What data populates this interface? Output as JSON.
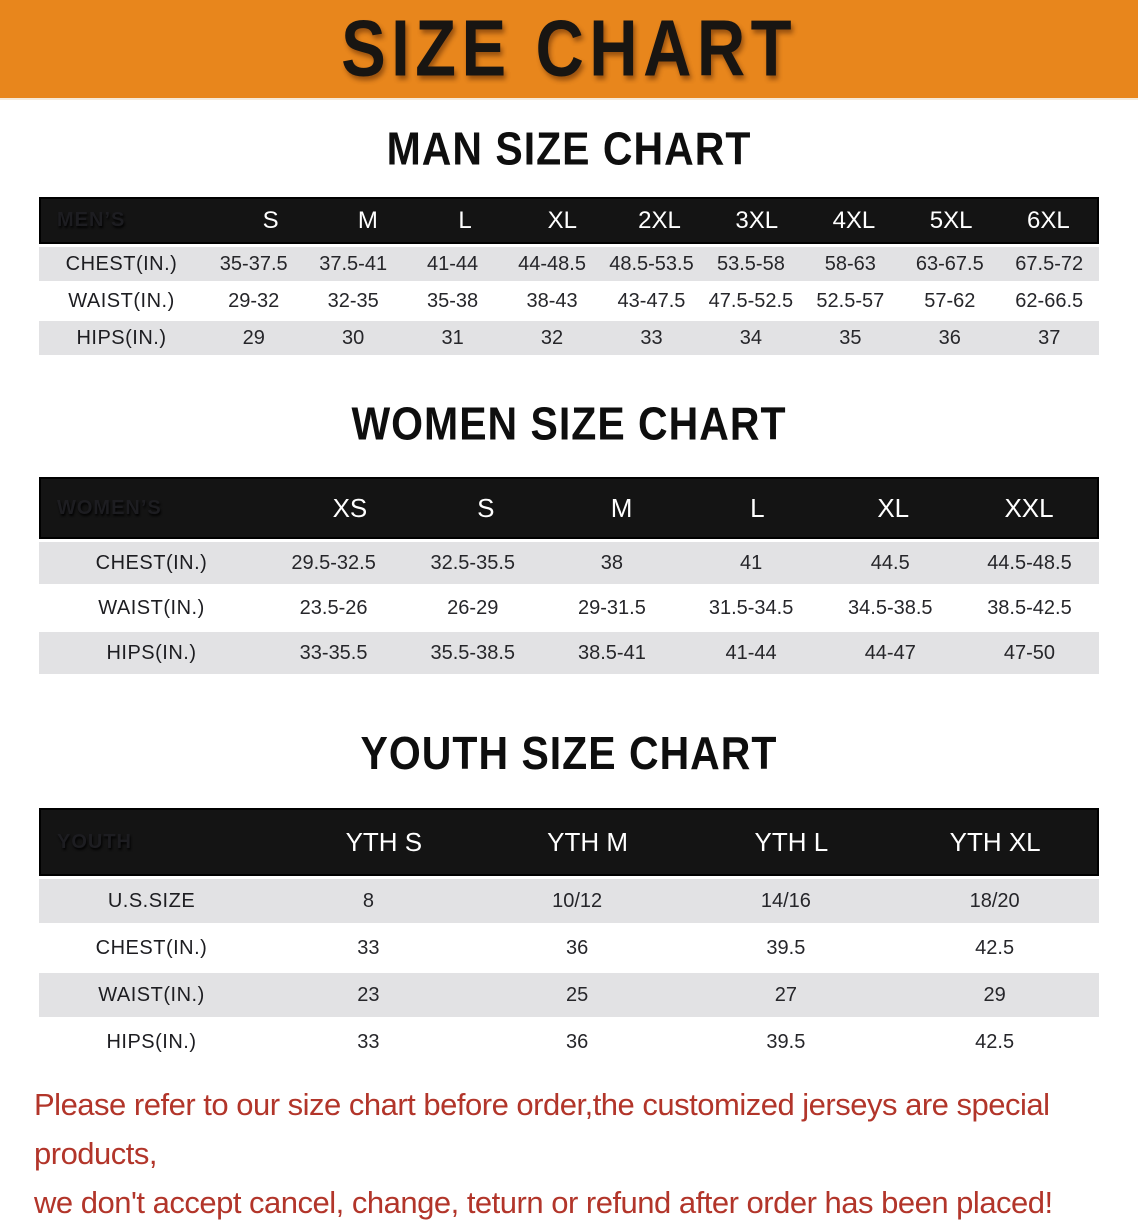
{
  "banner": {
    "title": "SIZE CHART",
    "background_color": "#E8861C",
    "text_color": "#181512"
  },
  "colors": {
    "table_header_bg": "#141414",
    "stripe_row_bg": "#e2e2e4",
    "note_text_color": "#B2352A"
  },
  "sections": [
    {
      "heading": "MAN SIZE CHART",
      "table": {
        "label": "MEN’S",
        "columns": [
          "S",
          "M",
          "L",
          "XL",
          "2XL",
          "3XL",
          "4XL",
          "5XL",
          "6XL"
        ],
        "rows": [
          {
            "label": "CHEST(IN.)",
            "values": [
              "35-37.5",
              "37.5-41",
              "41-44",
              "44-48.5",
              "48.5-53.5",
              "53.5-58",
              "58-63",
              "63-67.5",
              "67.5-72"
            ]
          },
          {
            "label": "WAIST(IN.)",
            "values": [
              "29-32",
              "32-35",
              "35-38",
              "38-43",
              "43-47.5",
              "47.5-52.5",
              "52.5-57",
              "57-62",
              "62-66.5"
            ]
          },
          {
            "label": "HIPS(IN.)",
            "values": [
              "29",
              "30",
              "31",
              "32",
              "33",
              "34",
              "35",
              "36",
              "37"
            ]
          }
        ]
      }
    },
    {
      "heading": "WOMEN SIZE CHART",
      "table": {
        "label": "WOMEN’S",
        "columns": [
          "XS",
          "S",
          "M",
          "L",
          "XL",
          "XXL"
        ],
        "rows": [
          {
            "label": "CHEST(IN.)",
            "values": [
              "29.5-32.5",
              "32.5-35.5",
              "38",
              "41",
              "44.5",
              "44.5-48.5"
            ]
          },
          {
            "label": "WAIST(IN.)",
            "values": [
              "23.5-26",
              "26-29",
              "29-31.5",
              "31.5-34.5",
              "34.5-38.5",
              "38.5-42.5"
            ]
          },
          {
            "label": "HIPS(IN.)",
            "values": [
              "33-35.5",
              "35.5-38.5",
              "38.5-41",
              "41-44",
              "44-47",
              "47-50"
            ]
          }
        ]
      }
    },
    {
      "heading": "YOUTH SIZE CHART",
      "table": {
        "label": "YOUTH",
        "columns": [
          "YTH S",
          "YTH M",
          "YTH L",
          "YTH XL"
        ],
        "rows": [
          {
            "label": "U.S.SIZE",
            "values": [
              "8",
              "10/12",
              "14/16",
              "18/20"
            ]
          },
          {
            "label": "CHEST(IN.)",
            "values": [
              "33",
              "36",
              "39.5",
              "42.5"
            ]
          },
          {
            "label": "WAIST(IN.)",
            "values": [
              "23",
              "25",
              "27",
              "29"
            ]
          },
          {
            "label": "HIPS(IN.)",
            "values": [
              "33",
              "36",
              "39.5",
              "42.5"
            ]
          }
        ]
      }
    }
  ],
  "note": {
    "line1": "Please refer to our size chart before order,the customized jerseys are special products,",
    "line2": "we don't accept cancel, change, teturn or refund after order has been placed!"
  }
}
